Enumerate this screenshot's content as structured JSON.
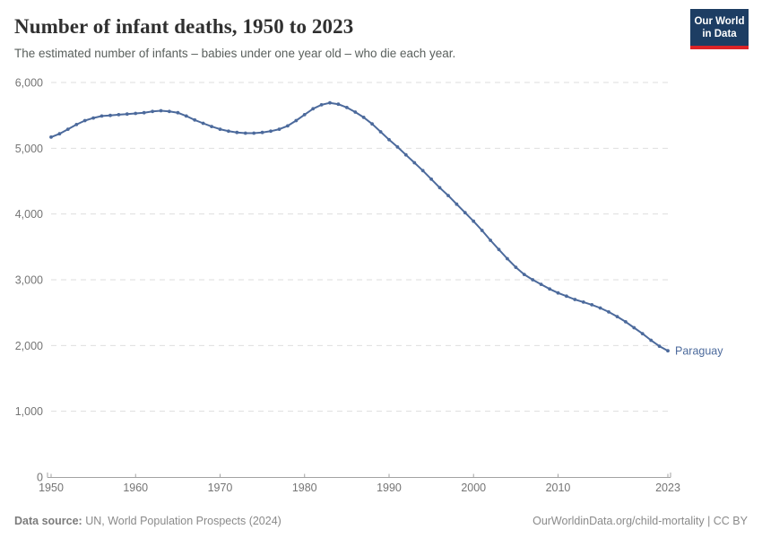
{
  "header": {
    "title": "Number of infant deaths, 1950 to 2023",
    "subtitle": "The estimated number of infants – babies under one year old – who die each year."
  },
  "logo": {
    "line1": "Our World",
    "line2": "in Data",
    "bg_color": "#1d3d63",
    "accent_color": "#dc2327"
  },
  "chart_data": {
    "type": "line",
    "title": "Number of infant deaths, 1950 to 2023",
    "xlabel": "",
    "ylabel": "",
    "xlim": [
      1950,
      2023
    ],
    "ylim": [
      0,
      6000
    ],
    "xticks": [
      1950,
      1960,
      1970,
      1980,
      1990,
      2000,
      2010,
      2023
    ],
    "yticks": [
      0,
      1000,
      2000,
      3000,
      4000,
      5000,
      6000
    ],
    "grid": "horizontal-dashed",
    "grid_color": "#dedede",
    "axis_color": "#a3a3a3",
    "tick_label_color": "#757575",
    "x": [
      1950,
      1951,
      1952,
      1953,
      1954,
      1955,
      1956,
      1957,
      1958,
      1959,
      1960,
      1961,
      1962,
      1963,
      1964,
      1965,
      1966,
      1967,
      1968,
      1969,
      1970,
      1971,
      1972,
      1973,
      1974,
      1975,
      1976,
      1977,
      1978,
      1979,
      1980,
      1981,
      1982,
      1983,
      1984,
      1985,
      1986,
      1987,
      1988,
      1989,
      1990,
      1991,
      1992,
      1993,
      1994,
      1995,
      1996,
      1997,
      1998,
      1999,
      2000,
      2001,
      2002,
      2003,
      2004,
      2005,
      2006,
      2007,
      2008,
      2009,
      2010,
      2011,
      2012,
      2013,
      2014,
      2015,
      2016,
      2017,
      2018,
      2019,
      2020,
      2021,
      2022,
      2023
    ],
    "series": [
      {
        "name": "Paraguay",
        "color": "#4c6a9c",
        "values": [
          5170,
          5220,
          5290,
          5360,
          5420,
          5460,
          5490,
          5500,
          5510,
          5520,
          5530,
          5540,
          5560,
          5570,
          5560,
          5540,
          5490,
          5430,
          5380,
          5330,
          5290,
          5260,
          5240,
          5230,
          5230,
          5240,
          5260,
          5290,
          5340,
          5420,
          5510,
          5600,
          5660,
          5690,
          5670,
          5620,
          5550,
          5470,
          5370,
          5250,
          5130,
          5020,
          4900,
          4780,
          4660,
          4530,
          4400,
          4280,
          4150,
          4020,
          3890,
          3750,
          3600,
          3460,
          3320,
          3190,
          3080,
          3000,
          2930,
          2860,
          2800,
          2750,
          2700,
          2660,
          2620,
          2570,
          2510,
          2440,
          2360,
          2270,
          2180,
          2080,
          1990,
          1920
        ]
      }
    ],
    "end_label": "Paraguay",
    "legend_position": "end-of-line"
  },
  "footer": {
    "source_label": "Data source:",
    "source_text": " UN, World Population Prospects (2024)",
    "credit": "OurWorldinData.org/child-mortality | CC BY"
  }
}
